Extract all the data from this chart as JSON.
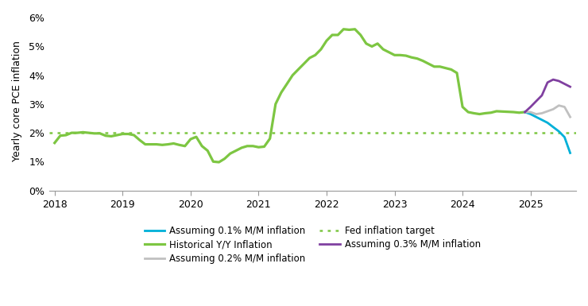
{
  "ylabel": "Yearly core PCE inflation",
  "ylim": [
    0.0,
    0.062
  ],
  "yticks": [
    0.0,
    0.01,
    0.02,
    0.03,
    0.04,
    0.05,
    0.06
  ],
  "ytick_labels": [
    "0%",
    "1%",
    "2%",
    "3%",
    "4%",
    "5%",
    "6%"
  ],
  "xlim": [
    2017.92,
    2025.67
  ],
  "xticks": [
    2018,
    2019,
    2020,
    2021,
    2022,
    2023,
    2024,
    2025
  ],
  "fed_target": 0.02,
  "colors": {
    "historical": "#7dc642",
    "line01": "#00b0d8",
    "line02": "#c0c0c0",
    "line03": "#8040a0",
    "fed_target": "#7dc642"
  },
  "historical_x": [
    2018.0,
    2018.083,
    2018.167,
    2018.25,
    2018.333,
    2018.417,
    2018.5,
    2018.583,
    2018.667,
    2018.75,
    2018.833,
    2018.917,
    2019.0,
    2019.083,
    2019.167,
    2019.25,
    2019.333,
    2019.417,
    2019.5,
    2019.583,
    2019.667,
    2019.75,
    2019.833,
    2019.917,
    2020.0,
    2020.083,
    2020.167,
    2020.25,
    2020.333,
    2020.417,
    2020.5,
    2020.583,
    2020.667,
    2020.75,
    2020.833,
    2020.917,
    2021.0,
    2021.083,
    2021.167,
    2021.25,
    2021.333,
    2021.417,
    2021.5,
    2021.583,
    2021.667,
    2021.75,
    2021.833,
    2021.917,
    2022.0,
    2022.083,
    2022.167,
    2022.25,
    2022.333,
    2022.417,
    2022.5,
    2022.583,
    2022.667,
    2022.75,
    2022.833,
    2022.917,
    2023.0,
    2023.083,
    2023.167,
    2023.25,
    2023.333,
    2023.417,
    2023.5,
    2023.583,
    2023.667,
    2023.75,
    2023.833,
    2023.917,
    2024.0,
    2024.083,
    2024.167,
    2024.25,
    2024.333,
    2024.417,
    2024.5,
    2024.583,
    2024.667,
    2024.75,
    2024.833,
    2024.917
  ],
  "historical_y": [
    0.0165,
    0.019,
    0.0192,
    0.02,
    0.02,
    0.0202,
    0.02,
    0.0198,
    0.0198,
    0.019,
    0.0188,
    0.0192,
    0.0196,
    0.0196,
    0.0192,
    0.0175,
    0.016,
    0.016,
    0.016,
    0.0158,
    0.016,
    0.0163,
    0.0158,
    0.0154,
    0.0178,
    0.0186,
    0.0154,
    0.0138,
    0.01,
    0.0098,
    0.011,
    0.0128,
    0.0138,
    0.0148,
    0.0154,
    0.0154,
    0.015,
    0.0152,
    0.018,
    0.03,
    0.034,
    0.037,
    0.04,
    0.042,
    0.044,
    0.046,
    0.047,
    0.049,
    0.052,
    0.054,
    0.054,
    0.056,
    0.0558,
    0.056,
    0.054,
    0.051,
    0.05,
    0.051,
    0.049,
    0.048,
    0.047,
    0.047,
    0.0468,
    0.0462,
    0.0458,
    0.045,
    0.044,
    0.043,
    0.043,
    0.0425,
    0.042,
    0.0408,
    0.029,
    0.0272,
    0.0268,
    0.0265,
    0.0268,
    0.027,
    0.0275,
    0.0274,
    0.0273,
    0.0272,
    0.027,
    0.0272
  ],
  "line01_x": [
    2024.917,
    2025.0,
    2025.083,
    2025.167,
    2025.25,
    2025.333,
    2025.417,
    2025.5,
    2025.583
  ],
  "line01_y": [
    0.0272,
    0.0265,
    0.0255,
    0.0245,
    0.0235,
    0.022,
    0.0205,
    0.0185,
    0.013
  ],
  "line02_x": [
    2024.917,
    2025.0,
    2025.083,
    2025.167,
    2025.25,
    2025.333,
    2025.417,
    2025.5,
    2025.583
  ],
  "line02_y": [
    0.0272,
    0.0272,
    0.0265,
    0.0268,
    0.0275,
    0.0282,
    0.0295,
    0.029,
    0.0255
  ],
  "line03_x": [
    2024.917,
    2025.0,
    2025.083,
    2025.167,
    2025.25,
    2025.333,
    2025.417,
    2025.5,
    2025.583
  ],
  "line03_y": [
    0.0272,
    0.029,
    0.031,
    0.033,
    0.0375,
    0.0385,
    0.038,
    0.037,
    0.036
  ],
  "legend": {
    "line01_label": "Assuming 0.1% M/M inflation",
    "line02_label": "Assuming 0.2% M/M inflation",
    "line03_label": "Assuming 0.3% M/M inflation",
    "historical_label": "Historical Y/Y Inflation",
    "fed_label": "Fed inflation target"
  },
  "background_color": "#ffffff",
  "linewidth": 2.0
}
